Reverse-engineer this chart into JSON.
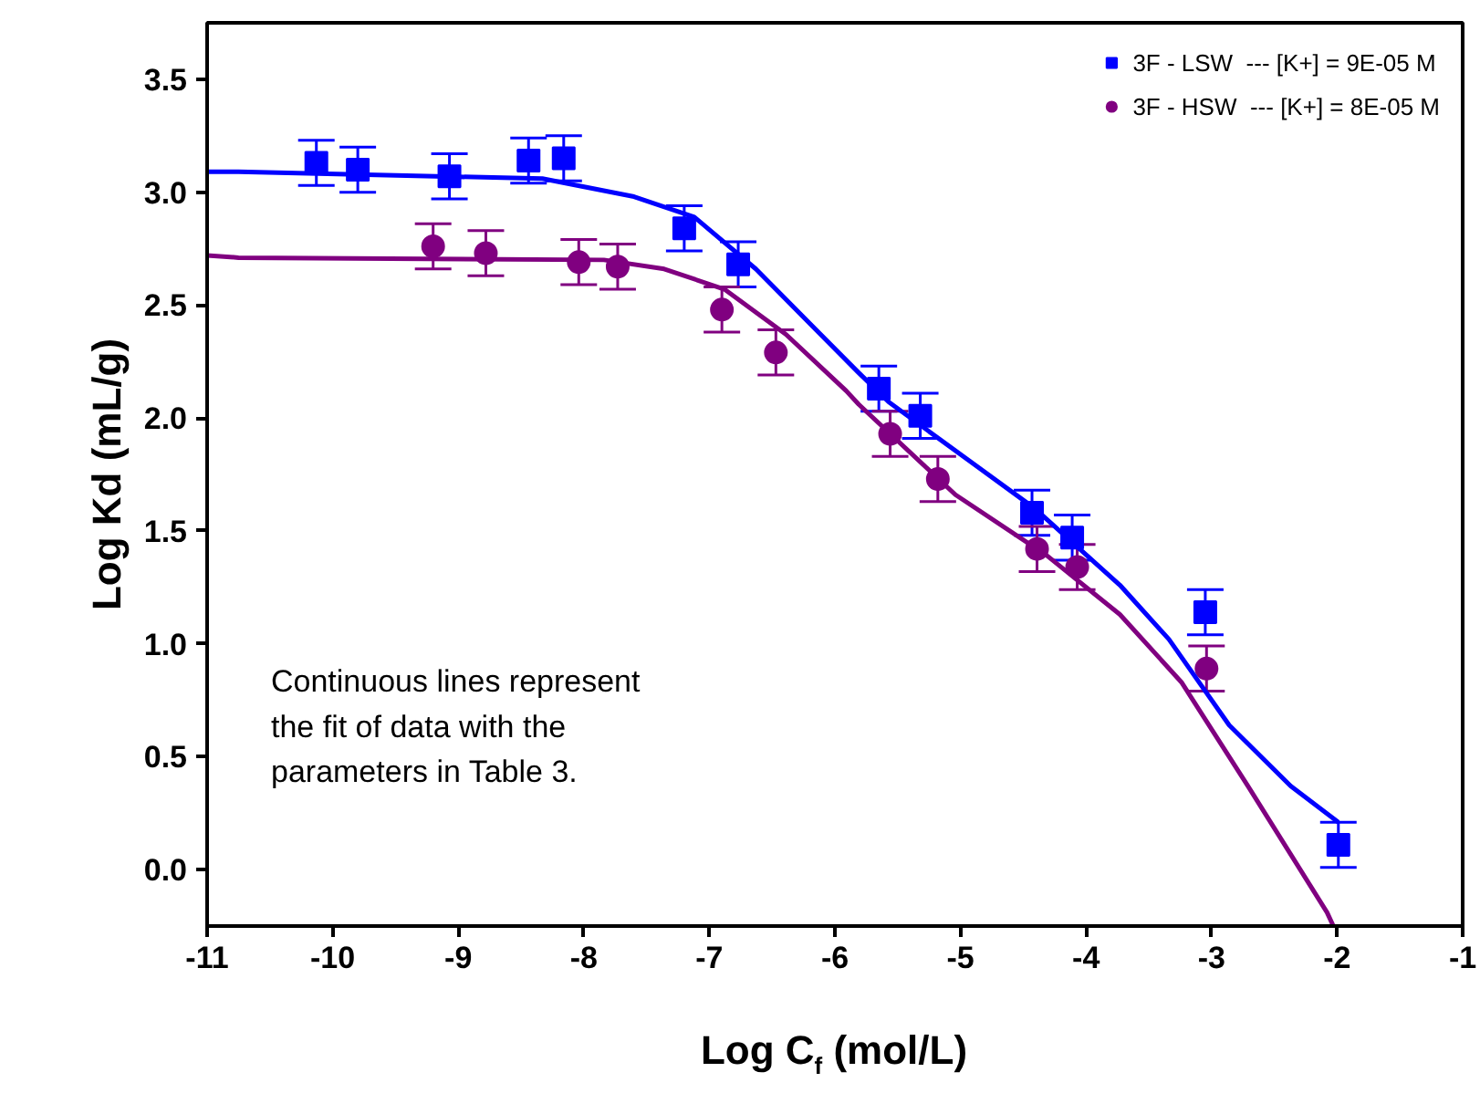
{
  "chart_data": {
    "type": "scatter",
    "xlabel": "Log C$_{f}$ (mol/L)",
    "ylabel": "Log Kd (mL/g)",
    "xlim": [
      -11,
      -1
    ],
    "ylim": [
      -0.25,
      3.75
    ],
    "xticks": [
      -11,
      -10,
      -9,
      -8,
      -7,
      -6,
      -5,
      -4,
      -3,
      -2,
      -1
    ],
    "yticks": [
      {
        "value": 0,
        "label": "0.0"
      },
      {
        "value": 0.5,
        "label": "0.5"
      },
      {
        "value": 1,
        "label": "1.0"
      },
      {
        "value": 1.5,
        "label": "1.5"
      },
      {
        "value": 2,
        "label": "2.0"
      },
      {
        "value": 2.5,
        "label": "2.5"
      },
      {
        "value": 3,
        "label": "3.0"
      },
      {
        "value": 3.5,
        "label": "3.5"
      }
    ],
    "grid": false,
    "legend": "top right",
    "annotations": [
      "Continuous lines represent\nthe fit of data with the\nparameters in Table 3."
    ],
    "series": [
      {
        "name": "3F - LSW  --- [K+] = 9E-05 M",
        "marker": "square",
        "color": "#0000ff",
        "x": [
          -10.13,
          -9.8,
          -9.07,
          -8.44,
          -8.16,
          -7.2,
          -6.77,
          -5.65,
          -5.32,
          -4.43,
          -4.11,
          -3.05,
          -1.99
        ],
        "values": [
          3.13,
          3.1,
          3.07,
          3.14,
          3.15,
          2.84,
          2.68,
          2.13,
          2.01,
          1.58,
          1.47,
          1.14,
          0.11
        ],
        "errors": [
          0.1,
          0.1,
          0.1,
          0.1,
          0.1,
          0.1,
          0.1,
          0.1,
          0.1,
          0.1,
          0.1,
          0.1,
          0.1
        ]
      },
      {
        "name": "3F - HSW  --- [K+] = 8E-05 M",
        "marker": "circle",
        "color": "#800080",
        "x": [
          -9.2,
          -8.78,
          -8.04,
          -7.73,
          -6.9,
          -6.47,
          -5.56,
          -5.18,
          -4.39,
          -4.07,
          -3.04
        ],
        "values": [
          2.76,
          2.73,
          2.69,
          2.67,
          2.48,
          2.29,
          1.93,
          1.73,
          1.42,
          1.34,
          0.89
        ],
        "errors": [
          0.1,
          0.1,
          0.1,
          0.1,
          0.1,
          0.1,
          0.1,
          0.1,
          0.1,
          0.1,
          0.1
        ]
      },
      {
        "type": "line",
        "color": "#0000ff",
        "x": [
          -11,
          -10.75,
          -8.33,
          -7.6,
          -7.12,
          -6.63,
          -6.15,
          -5.81,
          -5.57,
          -4.41,
          -3.73,
          -3.34,
          -2.86,
          -2.37,
          -1.99
        ],
        "values": [
          3.09,
          3.09,
          3.06,
          2.98,
          2.89,
          2.66,
          2.39,
          2.2,
          2.07,
          1.6,
          1.26,
          1.02,
          0.64,
          0.37,
          0.21
        ]
      },
      {
        "type": "line",
        "color": "#800080",
        "x": [
          -11,
          -10.75,
          -7.84,
          -7.36,
          -6.88,
          -6.39,
          -5.91,
          -5.81,
          -5.04,
          -4.31,
          -3.73,
          -3.24,
          -2.71,
          -2.08,
          -2.03
        ],
        "values": [
          2.72,
          2.71,
          2.7,
          2.66,
          2.57,
          2.37,
          2.12,
          2.06,
          1.66,
          1.39,
          1.13,
          0.83,
          0.37,
          -0.19,
          -0.25
        ]
      }
    ]
  }
}
